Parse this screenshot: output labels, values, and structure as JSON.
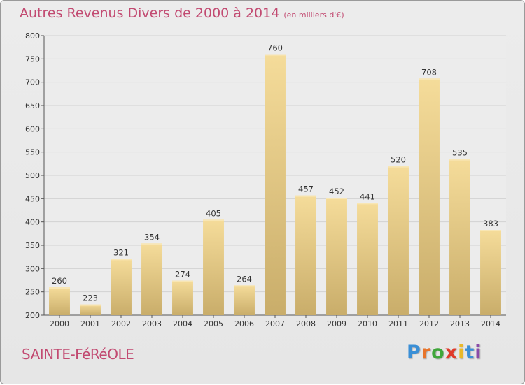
{
  "title": "Autres Revenus Divers de 2000 à 2014",
  "subtitle": "(en milliers d'€)",
  "commune": "SAINTE-FéRéOLE",
  "logo": {
    "text": "Proxiti",
    "letter_colors": [
      "#3a8fd6",
      "#e8742a",
      "#3fa63a",
      "#e03a2a",
      "#e8b82a",
      "#3a8fd6",
      "#8a4aa8"
    ]
  },
  "colors": {
    "title": "#c24a71",
    "bar_light": "#f5dc9a",
    "bar_dark": "#c9ad6a"
  },
  "chart_data": {
    "type": "bar",
    "categories": [
      "2000",
      "2001",
      "2002",
      "2003",
      "2004",
      "2005",
      "2006",
      "2007",
      "2008",
      "2009",
      "2010",
      "2011",
      "2012",
      "2013",
      "2014"
    ],
    "values": [
      260,
      223,
      321,
      354,
      274,
      405,
      264,
      760,
      457,
      452,
      441,
      520,
      708,
      535,
      383
    ],
    "ylim": [
      200,
      800
    ],
    "yticks": [
      200,
      250,
      300,
      350,
      400,
      450,
      500,
      550,
      600,
      650,
      700,
      750,
      800
    ],
    "grid": true
  }
}
